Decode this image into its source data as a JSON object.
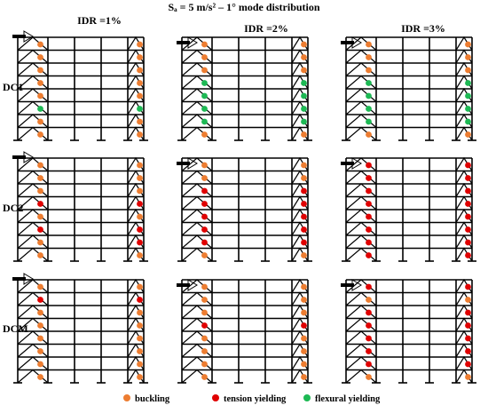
{
  "title": "Sₐ = 5 m/s² – 1° mode distribution",
  "columns": [
    "IDR =1%",
    "IDR =2%",
    "IDR =3%"
  ],
  "rows": [
    "DC1",
    "DC2",
    "DCM"
  ],
  "legend": [
    {
      "label": "buckling",
      "color": "#ED7D31"
    },
    {
      "label": "tension yielding",
      "color": "#E00000"
    },
    {
      "label": "flexural yielding",
      "color": "#1DB954"
    }
  ],
  "stories": 8,
  "panels": {
    "DC1": [
      {
        "L": [
          "b",
          "b",
          "b",
          "b",
          "b",
          "f",
          "b",
          "b"
        ],
        "R": [
          "b",
          "b",
          "b",
          "b",
          "b",
          "f",
          "b",
          "b"
        ]
      },
      {
        "L": [
          "b",
          "b",
          "b",
          "f",
          "f",
          "f",
          "f",
          "b"
        ],
        "R": [
          "b",
          "b",
          "b",
          "f",
          "f",
          "f",
          "f",
          "b"
        ]
      },
      {
        "L": [
          "b",
          "b",
          "b",
          "f",
          "f",
          "f",
          "f",
          "b"
        ],
        "R": [
          "b",
          "b",
          "b",
          "f",
          "f",
          "f",
          "f",
          "b"
        ]
      }
    ],
    "DC2": [
      {
        "L": [
          "b",
          "b",
          "b",
          "t",
          "b",
          "t",
          "b",
          "b"
        ],
        "R": [
          "b",
          "b",
          "b",
          "t",
          "b",
          "t",
          "t",
          "b"
        ]
      },
      {
        "L": [
          "b",
          "b",
          "t",
          "t",
          "t",
          "t",
          "t",
          "b"
        ],
        "R": [
          "b",
          "b",
          "t",
          "t",
          "t",
          "t",
          "t",
          "b"
        ]
      },
      {
        "L": [
          "t",
          "t",
          "t",
          "t",
          "t",
          "t",
          "t",
          "t"
        ],
        "R": [
          "t",
          "t",
          "t",
          "t",
          "t",
          "t",
          "t",
          "t"
        ]
      }
    ],
    "DCM": [
      {
        "L": [
          "b",
          "t",
          "b",
          "b",
          "b",
          "b",
          "b",
          "b"
        ],
        "R": [
          "b",
          "t",
          "b",
          "b",
          "b",
          "b",
          "b",
          "b"
        ]
      },
      {
        "L": [
          "b",
          "b",
          "b",
          "t",
          "b",
          "b",
          "b",
          "b"
        ],
        "R": [
          "b",
          "b",
          "b",
          "t",
          "b",
          "b",
          "b",
          "b"
        ]
      },
      {
        "L": [
          "t",
          "b",
          "t",
          "t",
          "t",
          "t",
          "t",
          "b"
        ],
        "R": [
          "t",
          "b",
          "t",
          "t",
          "t",
          "t",
          "t",
          "b"
        ]
      }
    ]
  }
}
